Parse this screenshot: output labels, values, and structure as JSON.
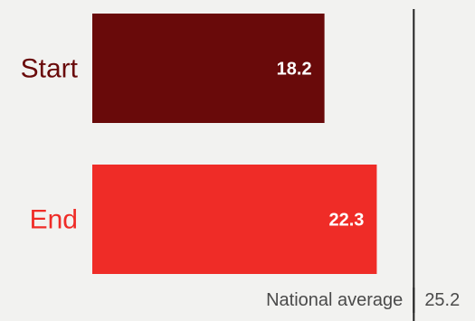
{
  "chart_data": {
    "type": "bar",
    "orientation": "horizontal",
    "categories": [
      "Start",
      "End"
    ],
    "values": [
      18.2,
      22.3
    ],
    "value_labels": [
      "18.2",
      "22.3"
    ],
    "bar_colors": [
      "#690a0a",
      "#ef2c27"
    ],
    "label_colors": [
      "#690a0a",
      "#ef2c27"
    ],
    "reference_line": {
      "label": "National average",
      "value": 25.2,
      "value_label": "25.2",
      "color": "#222222"
    },
    "xlim": [
      0,
      25.2
    ],
    "grid": false,
    "legend": "none"
  }
}
